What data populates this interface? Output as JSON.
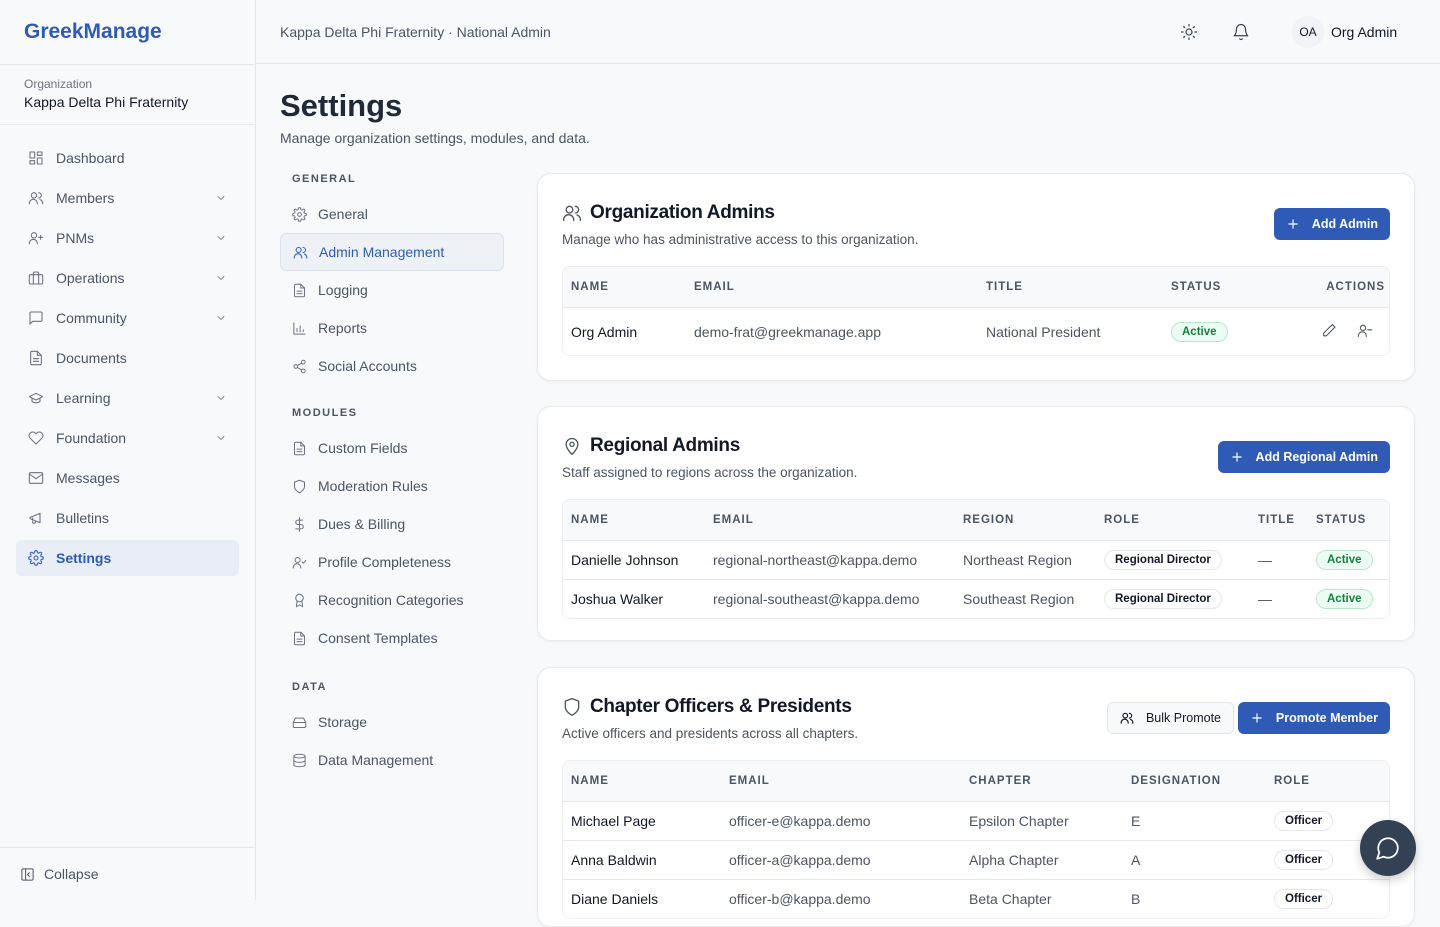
{
  "app": {
    "logo": "GreekManage",
    "org_label": "Organization",
    "org_name": "Kappa Delta Phi Fraternity",
    "collapse": "Collapse"
  },
  "sidebar": {
    "items": [
      {
        "label": "Dashboard",
        "icon": "dashboard-icon",
        "chevron": false
      },
      {
        "label": "Members",
        "icon": "users-icon",
        "chevron": true
      },
      {
        "label": "PNMs",
        "icon": "user-plus-icon",
        "chevron": true
      },
      {
        "label": "Operations",
        "icon": "briefcase-icon",
        "chevron": true
      },
      {
        "label": "Community",
        "icon": "chat-icon",
        "chevron": true
      },
      {
        "label": "Documents",
        "icon": "document-icon",
        "chevron": false
      },
      {
        "label": "Learning",
        "icon": "graduation-cap-icon",
        "chevron": true
      },
      {
        "label": "Foundation",
        "icon": "heart-icon",
        "chevron": true
      },
      {
        "label": "Messages",
        "icon": "mail-icon",
        "chevron": false
      },
      {
        "label": "Bulletins",
        "icon": "megaphone-icon",
        "chevron": false
      },
      {
        "label": "Settings",
        "icon": "gear-icon",
        "chevron": false,
        "active": true
      }
    ]
  },
  "header": {
    "breadcrumb": "Kappa Delta Phi Fraternity · National Admin",
    "avatar_initials": "OA",
    "user_name": "Org Admin"
  },
  "page": {
    "title": "Settings",
    "subtitle": "Manage organization settings, modules, and data."
  },
  "settings_nav": {
    "general_label": "GENERAL",
    "general": [
      "General",
      "Admin Management",
      "Logging",
      "Reports",
      "Social Accounts"
    ],
    "modules_label": "MODULES",
    "modules": [
      "Custom Fields",
      "Moderation Rules",
      "Dues & Billing",
      "Profile Completeness",
      "Recognition Categories",
      "Consent Templates"
    ],
    "data_label": "DATA",
    "data": [
      "Storage",
      "Data Management"
    ],
    "active": "Admin Management"
  },
  "org_admins": {
    "title": "Organization Admins",
    "description": "Manage who has administrative access to this organization.",
    "button": "Add Admin",
    "columns": [
      "NAME",
      "EMAIL",
      "TITLE",
      "STATUS",
      "ACTIONS"
    ],
    "rows": [
      {
        "name": "Org Admin",
        "email": "demo-frat@greekmanage.app",
        "title": "National President",
        "status": "Active"
      }
    ]
  },
  "regional_admins": {
    "title": "Regional Admins",
    "description": "Staff assigned to regions across the organization.",
    "button": "Add Regional Admin",
    "columns": [
      "NAME",
      "EMAIL",
      "REGION",
      "ROLE",
      "TITLE",
      "STATUS"
    ],
    "rows": [
      {
        "name": "Danielle Johnson",
        "email": "regional-northeast@kappa.demo",
        "region": "Northeast Region",
        "role": "Regional Director",
        "title": "—",
        "status": "Active"
      },
      {
        "name": "Joshua Walker",
        "email": "regional-southeast@kappa.demo",
        "region": "Southeast Region",
        "role": "Regional Director",
        "title": "—",
        "status": "Active"
      }
    ]
  },
  "officers": {
    "title": "Chapter Officers & Presidents",
    "description": "Active officers and presidents across all chapters.",
    "bulk_button": "Bulk Promote",
    "button": "Promote Member",
    "columns": [
      "NAME",
      "EMAIL",
      "CHAPTER",
      "DESIGNATION",
      "ROLE"
    ],
    "rows": [
      {
        "name": "Michael Page",
        "email": "officer-e@kappa.demo",
        "chapter": "Epsilon Chapter",
        "designation": "E",
        "role": "Officer"
      },
      {
        "name": "Anna Baldwin",
        "email": "officer-a@kappa.demo",
        "chapter": "Alpha Chapter",
        "designation": "A",
        "role": "Officer"
      },
      {
        "name": "Diane Daniels",
        "email": "officer-b@kappa.demo",
        "chapter": "Beta Chapter",
        "designation": "B",
        "role": "Officer"
      }
    ]
  },
  "colors": {
    "accent": "#2f5bb7",
    "active_green": "#15803d",
    "fab": "#334155"
  }
}
